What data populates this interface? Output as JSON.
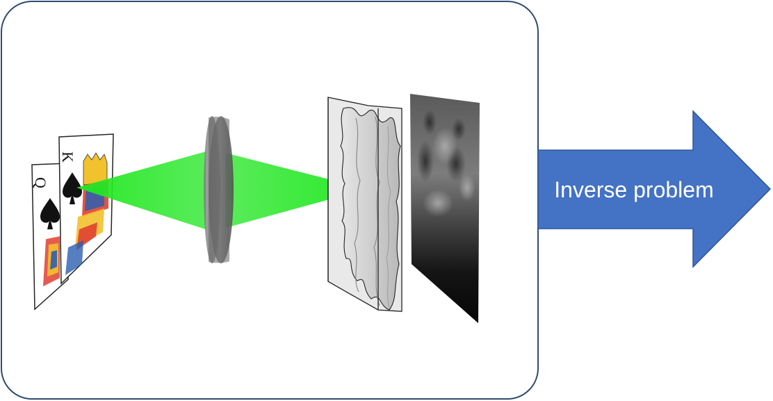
{
  "panel": {
    "frame_color": "#2f4a6e"
  },
  "cards": {
    "back": {
      "rank": "Q",
      "suit": "spade-icon"
    },
    "front": {
      "rank": "K",
      "suit": "spade-icon"
    }
  },
  "beam": {
    "color": "#22e322"
  },
  "lens": {
    "color": "#6b6b6b"
  },
  "diffuser": {
    "color": "#c9c9c9"
  },
  "speckle_screen": {
    "dark_color": "#141414",
    "light_color": "#8a8a8a"
  },
  "arrow": {
    "label": "Inverse problem",
    "fill": "#4472c4",
    "stroke": "#2f5597",
    "text_color": "#ffffff"
  }
}
